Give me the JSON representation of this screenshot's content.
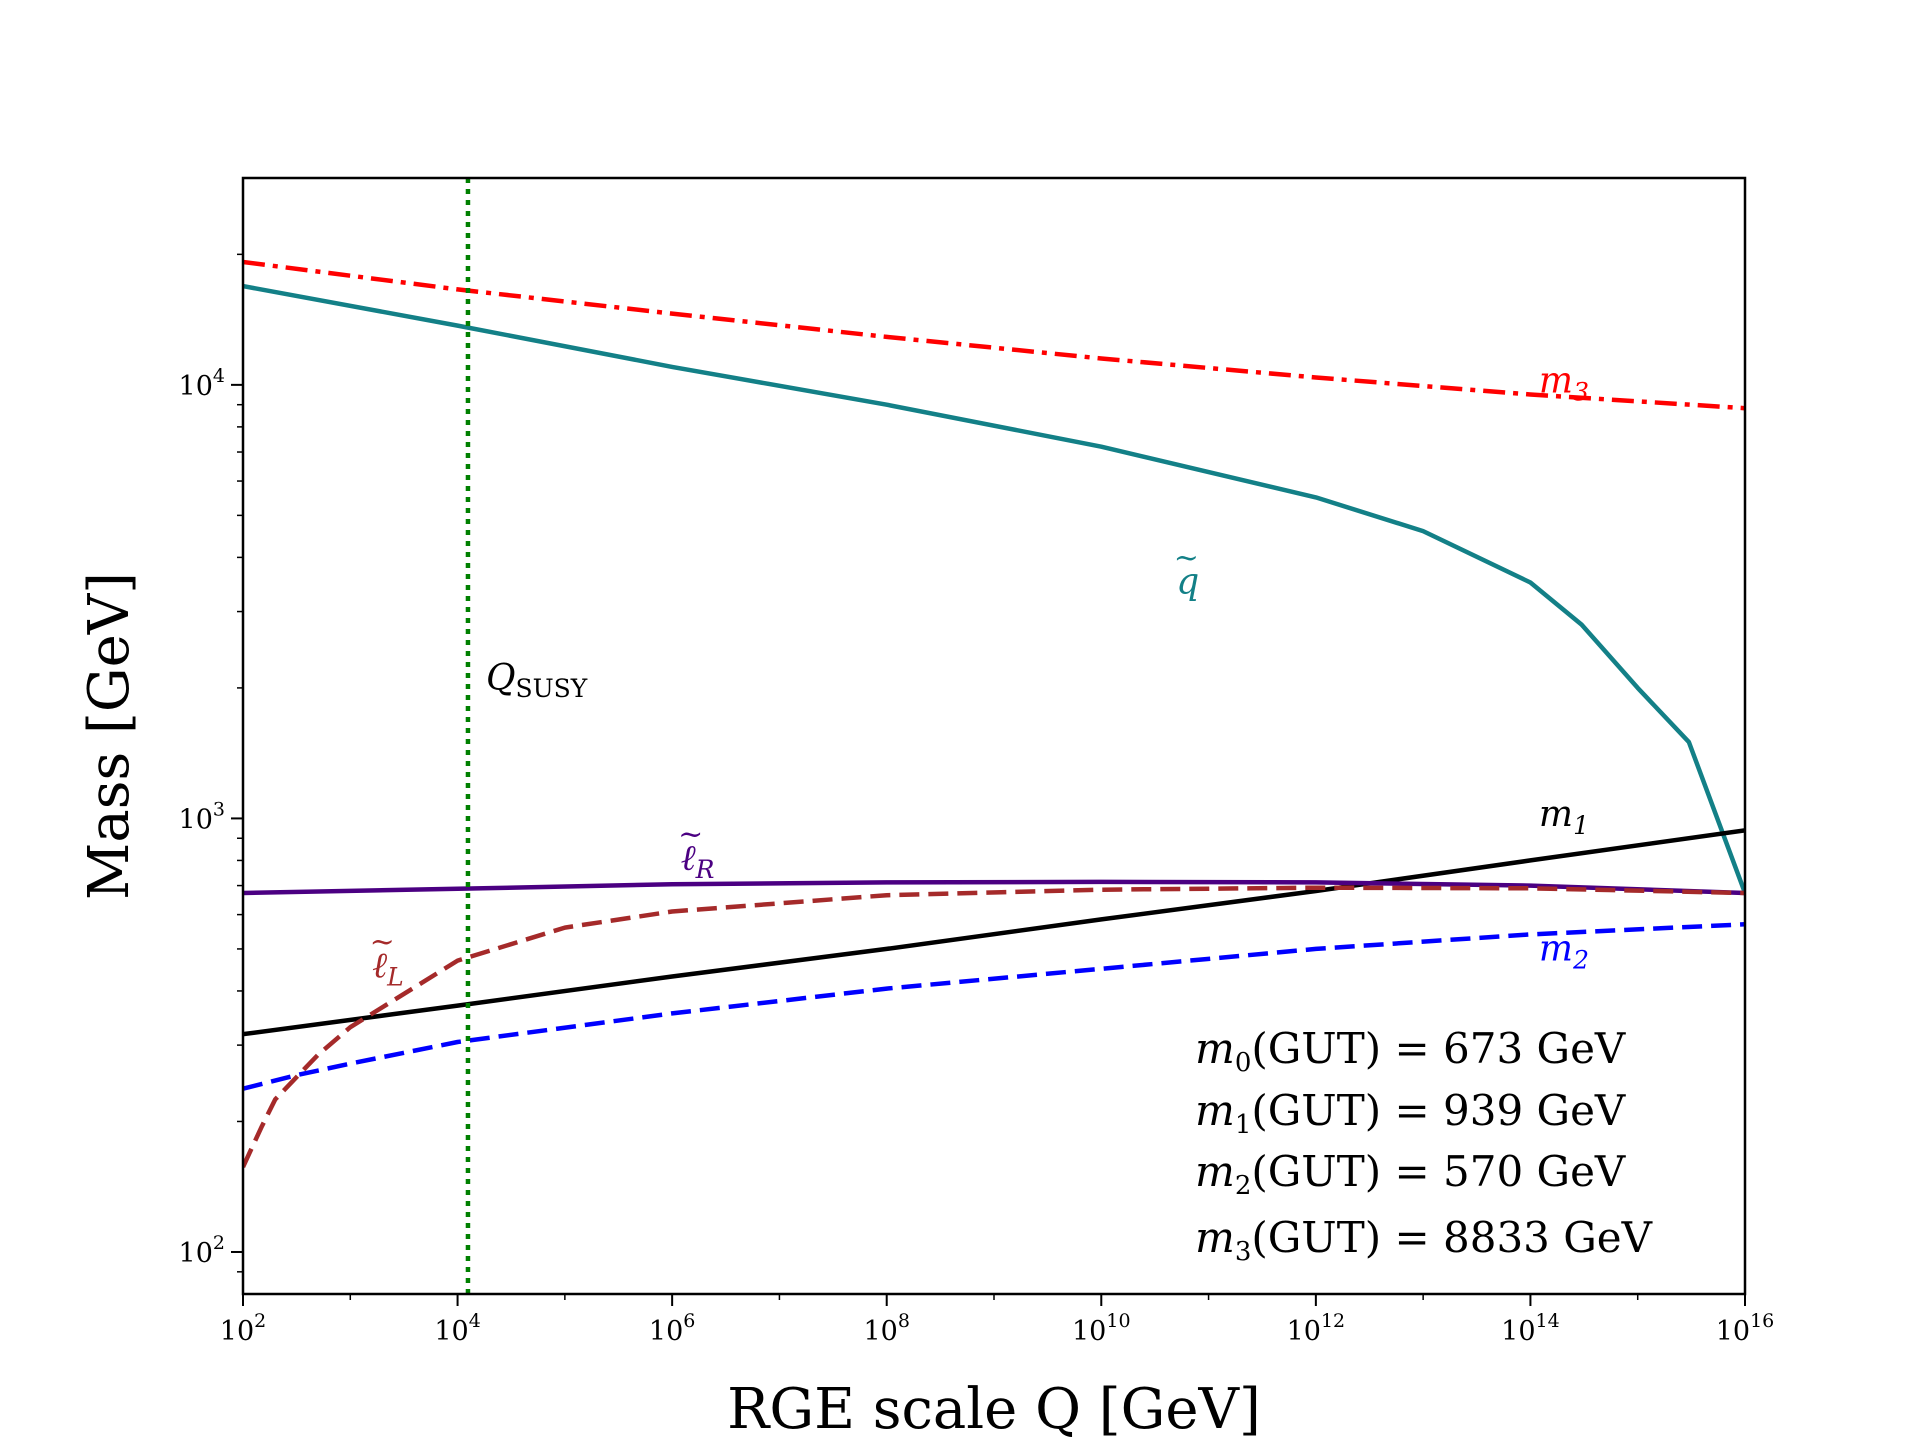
{
  "chart_data": {
    "type": "line",
    "xscale": "log",
    "yscale": "log",
    "xlim": [
      100,
      1e+16
    ],
    "ylim": [
      80,
      30000
    ],
    "xlabel": "RGE scale Q [GeV]",
    "ylabel": "Mass [GeV]",
    "x_ticks": [
      {
        "base": "10",
        "exp": "2"
      },
      {
        "base": "10",
        "exp": "4"
      },
      {
        "base": "10",
        "exp": "6"
      },
      {
        "base": "10",
        "exp": "8"
      },
      {
        "base": "10",
        "exp": "10"
      },
      {
        "base": "10",
        "exp": "12"
      },
      {
        "base": "10",
        "exp": "14"
      },
      {
        "base": "10",
        "exp": "16"
      }
    ],
    "y_ticks": [
      {
        "base": "10",
        "exp": "2"
      },
      {
        "base": "10",
        "exp": "3"
      },
      {
        "base": "10",
        "exp": "4"
      }
    ],
    "q_susy": {
      "x": 12500,
      "label_main": "Q",
      "label_sub": "SUSY",
      "color": "#008000"
    },
    "series": [
      {
        "id": "m3",
        "name": "m",
        "sub": "3",
        "color": "#ff0000",
        "style": "dashdot",
        "label_at": [
          120000000000000.0,
          9600
        ],
        "points": [
          [
            100,
            19200
          ],
          [
            10000.0,
            16600
          ],
          [
            1000000.0,
            14600
          ],
          [
            100000000.0,
            12900
          ],
          [
            10000000000.0,
            11500
          ],
          [
            1000000000000.0,
            10400
          ],
          [
            100000000000000.0,
            9500
          ],
          [
            1e+16,
            8833
          ]
        ]
      },
      {
        "id": "squark",
        "name": "q",
        "tilde": true,
        "color": "#138087",
        "style": "solid",
        "label_at": [
          50000000000.0,
          3300
        ],
        "points": [
          [
            100,
            16900
          ],
          [
            10000.0,
            13700
          ],
          [
            1000000.0,
            11000
          ],
          [
            100000000.0,
            9000
          ],
          [
            10000000000.0,
            7200
          ],
          [
            1000000000000.0,
            5500
          ],
          [
            10000000000000.0,
            4600
          ],
          [
            100000000000000.0,
            3500
          ],
          [
            300000000000000.0,
            2800
          ],
          [
            1000000000000000.0,
            2000
          ],
          [
            3000000000000000.0,
            1500
          ],
          [
            1e+16,
            673
          ]
        ]
      },
      {
        "id": "m1",
        "name": "m",
        "sub": "1",
        "color": "#000000",
        "style": "solid",
        "label_at": [
          120000000000000.0,
          960
        ],
        "points": [
          [
            100,
            318
          ],
          [
            10000.0,
            370
          ],
          [
            1000000.0,
            432
          ],
          [
            100000000.0,
            500
          ],
          [
            10000000000.0,
            585
          ],
          [
            1000000000000.0,
            680
          ],
          [
            100000000000000.0,
            800
          ],
          [
            1e+16,
            939
          ]
        ]
      },
      {
        "id": "slepton_R",
        "name": "ℓ",
        "sub": "R",
        "tilde": true,
        "color": "#4b0082",
        "style": "solid",
        "label_at": [
          1200000.0,
          760
        ],
        "points": [
          [
            100,
            673
          ],
          [
            10000.0,
            688
          ],
          [
            1000000.0,
            705
          ],
          [
            100000000.0,
            712
          ],
          [
            10000000000.0,
            714
          ],
          [
            1000000000000.0,
            712
          ],
          [
            100000000000000.0,
            700
          ],
          [
            1e+16,
            673
          ]
        ]
      },
      {
        "id": "slepton_L",
        "name": "ℓ",
        "sub": "L",
        "tilde": true,
        "color": "#a52a2a",
        "style": "dashed",
        "label_at": [
          1600.0,
          430
        ],
        "points": [
          [
            100,
            157
          ],
          [
            150,
            195
          ],
          [
            200,
            225
          ],
          [
            500,
            285
          ],
          [
            1000.0,
            330
          ],
          [
            10000.0,
            470
          ],
          [
            100000.0,
            560
          ],
          [
            1000000.0,
            610
          ],
          [
            100000000.0,
            665
          ],
          [
            10000000000.0,
            685
          ],
          [
            1000000000000.0,
            692
          ],
          [
            100000000000000.0,
            690
          ],
          [
            1e+16,
            673
          ]
        ]
      },
      {
        "id": "m2",
        "name": "m",
        "sub": "2",
        "color": "#0000ff",
        "style": "dashed",
        "label_at": [
          120000000000000.0,
          470
        ],
        "points": [
          [
            100,
            238
          ],
          [
            300,
            255
          ],
          [
            1000.0,
            272
          ],
          [
            10000.0,
            305
          ],
          [
            1000000.0,
            355
          ],
          [
            100000000.0,
            405
          ],
          [
            10000000000.0,
            450
          ],
          [
            1000000000000.0,
            500
          ],
          [
            100000000000000.0,
            540
          ],
          [
            1e+16,
            570
          ]
        ]
      }
    ],
    "info": [
      {
        "var": "m",
        "sub": "0",
        "text": "(GUT) = 673 GeV"
      },
      {
        "var": "m",
        "sub": "1",
        "text": "(GUT) = 939 GeV"
      },
      {
        "var": "m",
        "sub": "2",
        "text": "(GUT) = 570 GeV"
      },
      {
        "var": "m",
        "sub": "3",
        "text": "(GUT) = 8833 GeV"
      }
    ]
  }
}
